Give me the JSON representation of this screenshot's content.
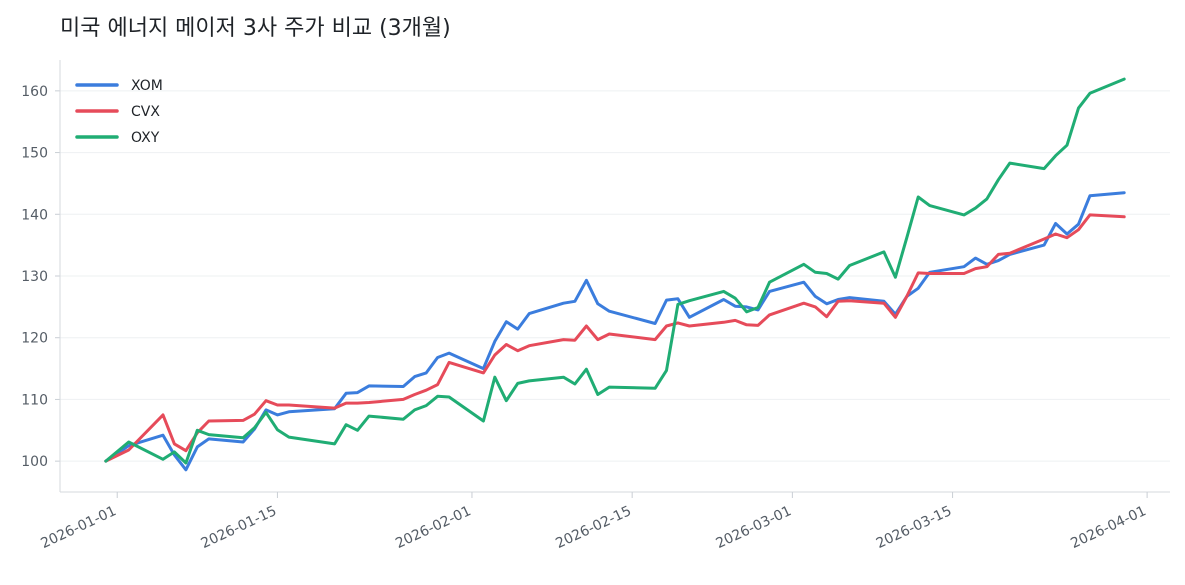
{
  "chart_data": {
    "type": "line",
    "title": "미국 에너지 메이저 3사 주가 비교 (3개월)",
    "xlabel": "",
    "ylabel": "",
    "xlim": [
      "2025-12-27",
      "2026-04-03"
    ],
    "ylim": [
      95,
      165
    ],
    "y_ticks": [
      100,
      110,
      120,
      130,
      140,
      150,
      160
    ],
    "x_ticks": [
      "2026-01-01",
      "2026-01-15",
      "2026-02-01",
      "2026-02-15",
      "2026-03-01",
      "2026-03-15",
      "2026-04-01"
    ],
    "grid": "horizontal",
    "legend": "top-left",
    "x": [
      "2025-12-31",
      "2026-01-02",
      "2026-01-05",
      "2026-01-06",
      "2026-01-07",
      "2026-01-08",
      "2026-01-09",
      "2026-01-12",
      "2026-01-13",
      "2026-01-14",
      "2026-01-15",
      "2026-01-16",
      "2026-01-20",
      "2026-01-21",
      "2026-01-22",
      "2026-01-23",
      "2026-01-26",
      "2026-01-27",
      "2026-01-28",
      "2026-01-29",
      "2026-01-30",
      "2026-02-02",
      "2026-02-03",
      "2026-02-04",
      "2026-02-05",
      "2026-02-06",
      "2026-02-09",
      "2026-02-10",
      "2026-02-11",
      "2026-02-12",
      "2026-02-13",
      "2026-02-17",
      "2026-02-18",
      "2026-02-19",
      "2026-02-20",
      "2026-02-23",
      "2026-02-24",
      "2026-02-25",
      "2026-02-26",
      "2026-02-27",
      "2026-03-02",
      "2026-03-03",
      "2026-03-04",
      "2026-03-05",
      "2026-03-06",
      "2026-03-09",
      "2026-03-10",
      "2026-03-11",
      "2026-03-12",
      "2026-03-13",
      "2026-03-16",
      "2026-03-17",
      "2026-03-18",
      "2026-03-19",
      "2026-03-20",
      "2026-03-23",
      "2026-03-24",
      "2026-03-25",
      "2026-03-26",
      "2026-03-27",
      "2026-03-30"
    ],
    "series": [
      {
        "name": "XOM",
        "color": "#3b7ddd",
        "values": [
          100.0,
          102.5,
          104.2,
          101.0,
          98.6,
          102.3,
          103.6,
          103.1,
          105.2,
          108.3,
          107.5,
          108.0,
          108.5,
          111.0,
          111.1,
          112.2,
          112.1,
          113.7,
          114.3,
          116.8,
          117.5,
          115.0,
          119.4,
          122.6,
          121.4,
          123.9,
          125.6,
          125.9,
          129.3,
          125.5,
          124.3,
          122.3,
          126.1,
          126.3,
          123.3,
          126.2,
          125.1,
          125.0,
          124.5,
          127.5,
          129.0,
          126.7,
          125.5,
          126.2,
          126.5,
          125.9,
          123.8,
          126.7,
          128.0,
          130.6,
          131.5,
          132.9,
          131.9,
          132.5,
          133.5,
          135.0,
          138.5,
          136.8,
          138.4,
          143.0,
          143.5
        ]
      },
      {
        "name": "CVX",
        "color": "#e64b5a",
        "values": [
          100.0,
          101.8,
          107.5,
          102.8,
          101.7,
          104.6,
          106.5,
          106.6,
          107.6,
          109.8,
          109.1,
          109.1,
          108.6,
          109.4,
          109.4,
          109.5,
          110.0,
          110.8,
          111.5,
          112.4,
          116.0,
          114.3,
          117.2,
          118.9,
          117.9,
          118.7,
          119.7,
          119.6,
          121.9,
          119.7,
          120.6,
          119.7,
          121.9,
          122.4,
          121.9,
          122.5,
          122.8,
          122.1,
          122.0,
          123.7,
          125.6,
          125.0,
          123.4,
          125.9,
          126.0,
          125.6,
          123.3,
          126.7,
          130.5,
          130.4,
          130.4,
          131.2,
          131.5,
          133.5,
          133.7,
          136.0,
          136.8,
          136.2,
          137.5,
          139.9,
          139.6
        ]
      },
      {
        "name": "OXY",
        "color": "#20ad74",
        "values": [
          100.0,
          103.1,
          100.3,
          101.5,
          99.7,
          105.0,
          104.3,
          103.8,
          105.4,
          107.9,
          105.1,
          103.9,
          102.8,
          105.9,
          105.0,
          107.3,
          106.8,
          108.3,
          109.0,
          110.5,
          110.4,
          106.5,
          113.6,
          109.8,
          112.6,
          113.0,
          113.6,
          112.5,
          114.9,
          110.8,
          112.0,
          111.8,
          114.7,
          125.4,
          126.0,
          127.5,
          126.4,
          124.2,
          124.9,
          129.0,
          131.9,
          130.6,
          130.4,
          129.5,
          131.7,
          133.9,
          129.8,
          136.2,
          142.8,
          141.4,
          139.9,
          141.0,
          142.5,
          145.6,
          148.3,
          147.4,
          149.5,
          151.2,
          157.2,
          159.6,
          161.9
        ]
      }
    ]
  }
}
